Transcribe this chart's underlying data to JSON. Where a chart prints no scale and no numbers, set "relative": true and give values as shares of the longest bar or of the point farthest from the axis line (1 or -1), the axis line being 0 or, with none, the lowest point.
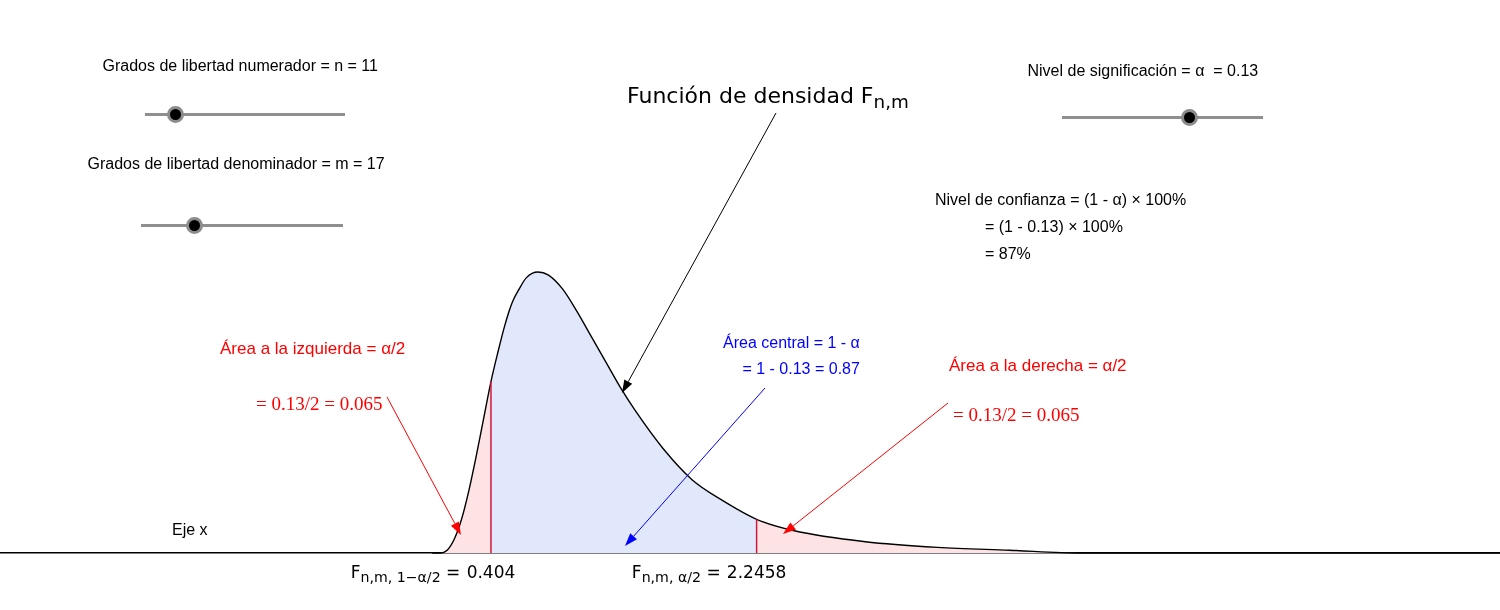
{
  "chart_data": {
    "type": "area",
    "relative": true,
    "xlabel": "Eje x",
    "xlim": [
      -3,
      7.4
    ],
    "xticks": [
      0.404,
      2.2458
    ],
    "series": [
      {
        "type": "line",
        "color": "#000000",
        "x": [
          0,
          0.05,
          0.1,
          0.15,
          0.2,
          0.25,
          0.3,
          0.35,
          0.404,
          0.45,
          0.5,
          0.55,
          0.6,
          0.65,
          0.73,
          0.8,
          0.9,
          1,
          1.1,
          1.2,
          1.3,
          1.4,
          1.6,
          1.8,
          2,
          2.2458,
          2.5,
          3,
          3.5,
          4,
          4.5,
          5,
          6,
          7.4
        ],
        "values": [
          0,
          0,
          0.01,
          0.05,
          0.12,
          0.22,
          0.34,
          0.47,
          0.61,
          0.71,
          0.81,
          0.89,
          0.94,
          0.98,
          1,
          0.99,
          0.94,
          0.86,
          0.77,
          0.68,
          0.59,
          0.51,
          0.37,
          0.26,
          0.19,
          0.12,
          0.08,
          0.04,
          0.02,
          0.01,
          0,
          0,
          0,
          0
        ]
      },
      {
        "color": "#fde3e3",
        "x": [
          0,
          0.05,
          0.1,
          0.15,
          0.2,
          0.25,
          0.3,
          0.35,
          0.404
        ],
        "values": [
          0,
          0,
          0.01,
          0.05,
          0.12,
          0.22,
          0.34,
          0.47,
          0.61
        ]
      },
      {
        "color": "#e2e8fc",
        "x": [
          0.404,
          0.45,
          0.5,
          0.55,
          0.6,
          0.65,
          0.73,
          0.8,
          0.9,
          1,
          1.1,
          1.2,
          1.3,
          1.4,
          1.6,
          1.8,
          2,
          2.2458
        ],
        "values": [
          0.61,
          0.71,
          0.81,
          0.89,
          0.94,
          0.98,
          1,
          0.99,
          0.94,
          0.86,
          0.77,
          0.68,
          0.59,
          0.51,
          0.37,
          0.26,
          0.19,
          0.12
        ]
      },
      {
        "color": "#fde3e3",
        "x": [
          2.2458,
          2.5,
          3,
          3.5,
          4,
          4.5,
          5,
          6,
          7.4
        ],
        "values": [
          0.12,
          0.08,
          0.04,
          0.02,
          0.01,
          0,
          0,
          0,
          0
        ]
      }
    ],
    "ref_lines": [
      {
        "axis": "x",
        "value": 0.404,
        "label": "F$_{n,m, 1−α/2}$ =",
        "color": "#d2173e"
      },
      {
        "axis": "x",
        "value": 2.2458,
        "label": "F$_{n,m, α/2}$ =",
        "color": "#d2173e"
      }
    ],
    "annotations": [
      "Función de densidad F$_{n,m}$",
      "Grados de libertad numerador = n = 11",
      "Grados de libertad denominador = m = 17",
      "Nivel de significación = α  = 0.13",
      "Nivel de confianza = (1 - α) × 100%\n= (1 - 0.13) × 100%\n= 87%",
      "Área a la izquierda = α/2",
      "= 0.13/2 = 0.065",
      "Área central = 1 - α\n= 1 - 0.13 = 0.87",
      "Área a la derecha = α/2",
      "= 0.13/2 = 0.065"
    ]
  }
}
